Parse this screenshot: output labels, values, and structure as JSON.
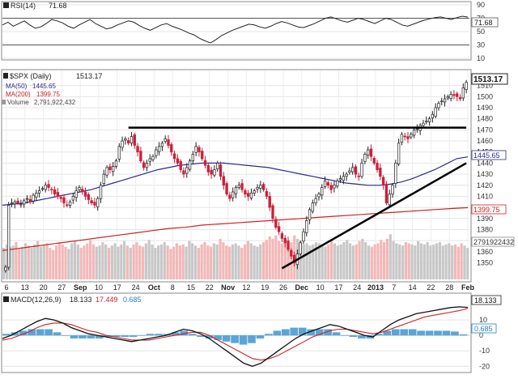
{
  "chart_data": {
    "type": "candlestick",
    "symbol_label": "$SPX (Daily)",
    "last_price": "1513.17",
    "price_axis": {
      "ylim": [
        1335,
        1520
      ],
      "ticks": [
        "1510",
        "1500",
        "1490",
        "1480",
        "1470",
        "1460",
        "1450",
        "1440",
        "1430",
        "1420",
        "1410",
        "1400",
        "1390",
        "1380",
        "1370",
        "1360",
        "1350"
      ]
    },
    "time_axis": {
      "labels": [
        "6",
        "13",
        "20",
        "27",
        "Sep",
        "10",
        "17",
        "24",
        "Oct",
        "8",
        "15",
        "22",
        "Nov",
        "12",
        "19",
        "26",
        "Dec",
        "10",
        "17",
        "24",
        "2013",
        "7",
        "14",
        "22",
        "28",
        "Feb"
      ]
    },
    "legend": [
      {
        "label": "MA(50)",
        "value": "1445.65",
        "color": "#2a2a8c"
      },
      {
        "label": "MA(200)",
        "value": "1399.75",
        "color": "#cc2222"
      },
      {
        "label": "Volume",
        "value": "2,791,922,432",
        "color": "#999999"
      }
    ],
    "value_tags": {
      "ma50": "1445.65",
      "ma200": "1399.75",
      "volume": "2791922432"
    },
    "closes": [
      1346,
      1402,
      1404,
      1405,
      1404,
      1403,
      1406,
      1408,
      1405,
      1411,
      1413,
      1415,
      1417,
      1420,
      1418,
      1416,
      1412,
      1410,
      1408,
      1404,
      1402,
      1405,
      1410,
      1415,
      1418,
      1414,
      1410,
      1407,
      1404,
      1402,
      1408,
      1420,
      1430,
      1436,
      1434,
      1437,
      1442,
      1455,
      1460,
      1462,
      1458,
      1464,
      1456,
      1450,
      1442,
      1436,
      1440,
      1444,
      1446,
      1452,
      1455,
      1458,
      1462,
      1456,
      1450,
      1444,
      1440,
      1434,
      1430,
      1436,
      1442,
      1448,
      1455,
      1450,
      1444,
      1438,
      1432,
      1430,
      1434,
      1440,
      1428,
      1420,
      1412,
      1408,
      1414,
      1418,
      1420,
      1416,
      1412,
      1410,
      1413,
      1415,
      1418,
      1420,
      1416,
      1410,
      1400,
      1390,
      1382,
      1378,
      1372,
      1368,
      1362,
      1356,
      1350,
      1358,
      1368,
      1378,
      1388,
      1398,
      1404,
      1408,
      1412,
      1418,
      1424,
      1420,
      1416,
      1420,
      1424,
      1426,
      1428,
      1430,
      1433,
      1436,
      1430,
      1428,
      1440,
      1448,
      1452,
      1446,
      1440,
      1434,
      1428,
      1420,
      1404,
      1412,
      1420,
      1440,
      1458,
      1466,
      1464,
      1462,
      1466,
      1470,
      1471,
      1474,
      1476,
      1478,
      1480,
      1484,
      1490,
      1494,
      1496,
      1498,
      1500,
      1502,
      1501,
      1500,
      1498,
      1508,
      1513
    ],
    "ma50": [
      1402,
      1403,
      1404,
      1406,
      1408,
      1410,
      1412,
      1414,
      1416,
      1419,
      1422,
      1425,
      1428,
      1431,
      1434,
      1436,
      1438,
      1439,
      1440,
      1440,
      1440,
      1439,
      1438,
      1437,
      1436,
      1434,
      1432,
      1430,
      1428,
      1426,
      1424,
      1422,
      1421,
      1420,
      1420,
      1421,
      1423,
      1426,
      1430,
      1434,
      1439,
      1444,
      1445.65
    ],
    "ma200": [
      1361,
      1363,
      1365,
      1367,
      1369,
      1371,
      1373,
      1375,
      1377,
      1379,
      1381,
      1382,
      1384,
      1385,
      1386,
      1387,
      1388,
      1389,
      1390,
      1391,
      1392,
      1393,
      1394,
      1395,
      1396,
      1397,
      1398,
      1399,
      1399.75
    ],
    "resistance_line": {
      "y": 1472,
      "x_start": 40,
      "x_end": 150
    },
    "support_line": {
      "y_start": 1345,
      "y_end": 1440,
      "x_start": 90,
      "x_end": 150
    },
    "volume_bars": [
      2.8,
      3.1,
      2.9,
      3.0,
      3.3,
      2.7,
      2.9,
      3.2,
      3.0,
      2.8,
      3.1,
      3.4,
      2.9,
      3.0,
      3.2,
      2.8,
      2.6,
      3.0,
      3.3,
      3.1,
      2.9,
      2.7,
      3.2,
      3.4,
      3.1,
      2.8,
      3.0,
      3.2,
      3.5,
      3.1,
      2.9,
      3.0,
      3.3,
      3.1,
      2.8,
      3.0,
      3.2,
      2.9,
      3.1,
      3.4,
      3.0,
      2.8,
      3.1,
      3.3,
      3.0,
      2.9,
      3.2,
      3.5,
      3.1,
      2.8,
      3.0,
      3.1,
      3.3,
      3.0,
      2.7,
      2.9,
      3.2,
      3.0,
      3.1,
      2.9,
      3.4,
      3.2,
      3.0,
      2.8,
      3.1,
      3.3,
      3.0,
      2.9,
      3.2,
      3.1,
      3.6,
      3.3,
      3.0,
      2.9,
      3.1,
      3.2,
      3.0,
      2.8,
      3.1,
      3.4,
      3.2,
      3.0,
      2.9,
      3.1,
      3.3,
      3.5,
      3.8,
      3.6,
      3.9,
      3.4,
      3.2,
      3.7,
      3.5,
      3.3,
      3.9,
      3.6,
      3.4,
      3.1,
      3.2,
      3.0,
      3.1,
      3.3,
      3.2,
      3.0,
      2.9,
      3.1,
      3.4,
      3.2,
      3.0,
      3.1,
      3.3,
      3.5,
      3.2,
      3.0,
      3.1,
      3.4,
      3.6,
      3.3,
      3.0,
      2.9,
      3.1,
      3.2,
      3.5,
      3.3,
      3.6,
      4.0,
      3.4,
      3.2,
      3.1,
      3.0,
      3.3,
      3.2,
      3.1,
      3.0,
      3.4,
      3.2,
      3.1,
      3.3,
      3.0,
      3.1,
      3.2,
      3.3,
      3.0,
      3.1,
      3.2,
      3.0,
      3.1,
      2.9,
      3.2,
      3.0,
      2.79
    ],
    "rsi": {
      "label": "RSI(14)",
      "value": "71.68",
      "ticks": [
        "90",
        "70",
        "50",
        "30",
        "10"
      ],
      "ylim": [
        10,
        90
      ],
      "values": [
        60,
        64,
        58,
        62,
        66,
        60,
        55,
        57,
        62,
        68,
        66,
        63,
        58,
        55,
        60,
        64,
        68,
        62,
        58,
        54,
        56,
        60,
        63,
        66,
        64,
        59,
        55,
        52,
        56,
        60,
        62,
        58,
        55,
        52,
        48,
        45,
        40,
        36,
        33,
        38,
        44,
        48,
        52,
        55,
        58,
        61,
        60,
        57,
        55,
        58,
        62,
        65,
        63,
        60,
        57,
        56,
        59,
        62,
        66,
        70,
        72,
        69,
        66,
        64,
        67,
        70,
        68,
        65,
        62,
        66,
        70,
        68,
        64,
        60,
        58,
        61,
        64,
        67,
        69,
        71,
        72,
        70,
        68,
        71,
        73,
        71.68
      ]
    },
    "macd": {
      "label": "MACD(12,26,9)",
      "macd_value": "18.133",
      "signal_value": "17.449",
      "hist_value": "0.685",
      "ticks": [
        "10",
        "0",
        "-10",
        "-20"
      ],
      "ylim": [
        -23,
        20
      ],
      "macd_line": [
        -2,
        0,
        3,
        6,
        9,
        11,
        10,
        8,
        5,
        3,
        1,
        0,
        -1,
        -2,
        -3,
        -4,
        -3,
        -2,
        -1,
        0,
        2,
        4,
        3,
        1,
        -2,
        -6,
        -10,
        -14,
        -18,
        -20,
        -18,
        -14,
        -10,
        -6,
        -2,
        1,
        3,
        5,
        7,
        6,
        4,
        2,
        0,
        -1,
        3,
        7,
        10,
        12,
        14,
        15,
        16,
        17,
        18,
        18.5,
        18.133
      ],
      "signal_line": [
        -3,
        -2,
        0,
        2,
        5,
        7,
        8,
        8,
        7,
        5,
        3,
        2,
        0,
        -1,
        -2,
        -3,
        -3,
        -3,
        -2,
        -1,
        0,
        1,
        2,
        2,
        0,
        -3,
        -6,
        -9,
        -12,
        -15,
        -16,
        -15,
        -13,
        -10,
        -7,
        -4,
        -1,
        1,
        3,
        4,
        4,
        3,
        2,
        1,
        2,
        4,
        6,
        8,
        10,
        12,
        13,
        14,
        15,
        16,
        17.449
      ],
      "histogram": [
        1,
        2,
        3,
        4,
        4,
        4,
        2,
        0,
        -2,
        -2,
        -2,
        -2,
        -1,
        -1,
        -1,
        -1,
        0,
        1,
        1,
        1,
        2,
        3,
        1,
        -1,
        -2,
        -3,
        -4,
        -5,
        -6,
        -5,
        -2,
        1,
        3,
        4,
        5,
        5,
        4,
        4,
        4,
        2,
        0,
        -1,
        -2,
        -2,
        1,
        3,
        4,
        4,
        4,
        3,
        3,
        3,
        3,
        2.5,
        0.685
      ]
    }
  }
}
